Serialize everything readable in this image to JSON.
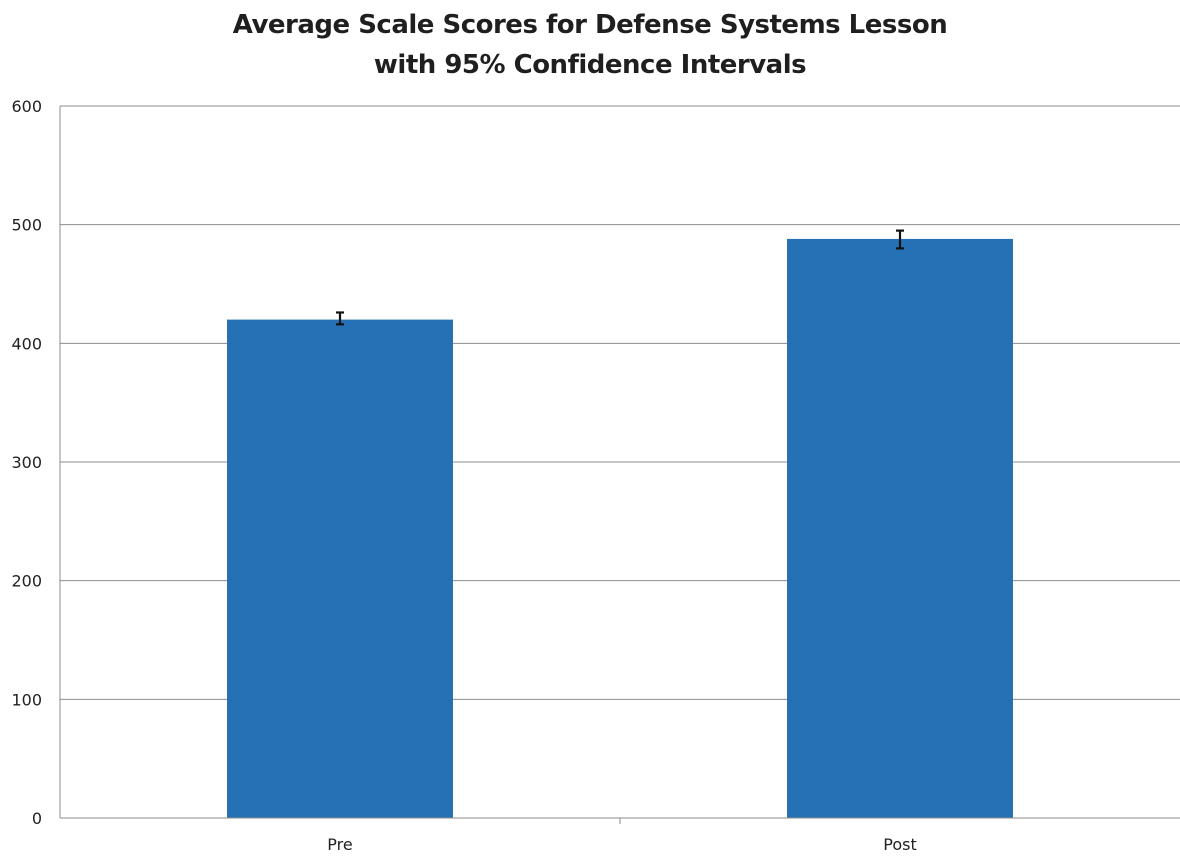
{
  "chart_data": {
    "type": "bar",
    "title": [
      "Average Scale Scores for Defense Systems Lesson",
      "with 95% Confidence Intervals"
    ],
    "categories": [
      "Pre",
      "Post"
    ],
    "values": [
      420,
      488
    ],
    "error_bars": [
      {
        "low": 416,
        "high": 426
      },
      {
        "low": 480,
        "high": 495
      }
    ],
    "xlabel": "",
    "ylabel": "",
    "ylim": [
      0,
      600
    ],
    "yticks": [
      0,
      100,
      200,
      300,
      400,
      500,
      600
    ],
    "grid": true,
    "legend": "none",
    "colors": {
      "bar": "#2671b6",
      "grid": "#8c8c8c",
      "error_bar": "#111111"
    }
  }
}
